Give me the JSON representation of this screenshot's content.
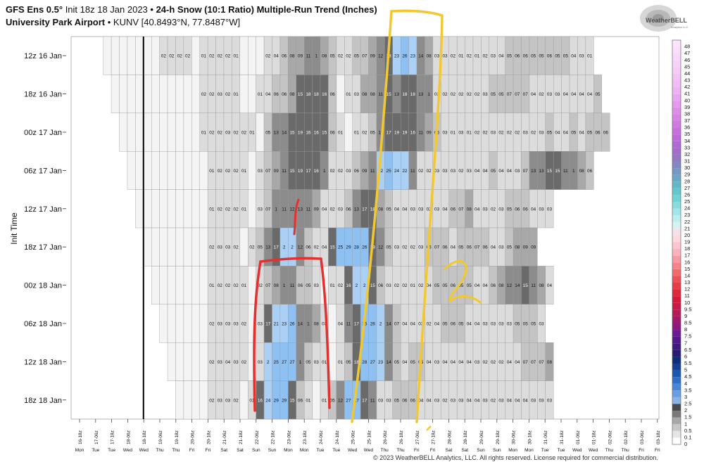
{
  "header": {
    "title_model": "GFS Ens 0.5°",
    "title_rest": "Init 18z 18 Jan 2023",
    "title_product": "24-h Snow (10:1 Ratio) Multiple-Run Trend (Inches)",
    "location_name": "University Park Airport",
    "location_rest": "KUNV [40.8493°N, 77.8487°W]",
    "logo_text": "WeatherBELL",
    "logo_sub": "Analytics LLC"
  },
  "footer": "© 2023 WeatherBELL Analytics, LLC. All rights reserved. License required for commercial distribution.",
  "colors": {
    "accent_blue": "#9ec6f2",
    "dark_gray": "#5a5a5a",
    "annotation_red": "#e53030",
    "annotation_yellow": "#f2c830"
  },
  "chart_data": {
    "type": "heatmap",
    "title": "24-h Snow (10:1 Ratio) Multiple-Run Trend (Inches)",
    "ylabel": "Init Time",
    "rows": [
      {
        "label": "12z 16 Jan",
        "start": 4,
        "values": [
          0,
          0,
          0,
          0,
          0,
          0,
          0,
          0.2,
          0.2,
          0.2,
          0.2,
          0,
          0.1,
          0.2,
          0.2,
          0.2,
          0.1,
          0,
          0,
          0,
          0.2,
          0.4,
          0.6,
          0.8,
          0.9,
          1.1,
          1.0,
          0.8,
          0.5,
          0.2,
          0.2,
          0.5,
          0.7,
          0.9,
          1.2,
          1.8,
          2.3,
          2.6,
          2.3,
          1.4,
          0.8,
          0.3,
          0.3,
          0.2,
          0.1,
          0.2,
          0.1,
          0.2,
          0.3,
          0.4,
          0.5,
          0.6,
          0.6,
          0.5,
          0.5,
          0.6,
          0.5,
          0.5,
          0.4,
          0.3,
          0.1
        ]
      },
      {
        "label": "18z 16 Jan",
        "start": 5,
        "values": [
          0,
          0,
          0,
          0,
          0,
          0,
          0,
          0,
          0,
          0,
          0,
          0.2,
          0.2,
          0.3,
          0.2,
          0.1,
          0,
          0,
          0.1,
          0.4,
          0.6,
          0.6,
          0.8,
          1.5,
          1.8,
          1.8,
          1.6,
          0.6,
          0,
          0.1,
          0.3,
          0.8,
          0.8,
          1.1,
          1.5,
          1.3,
          1.8,
          1.8,
          1.3,
          1.0,
          0.3,
          0.2,
          0.2,
          0.2,
          0.2,
          0.2,
          0.3,
          0.5,
          0.5,
          0.7,
          0.7,
          0.7,
          0.4,
          0.2,
          0.3,
          0.3,
          0.4,
          0.4,
          0.4,
          0.4,
          0.5
        ]
      },
      {
        "label": "00z 17 Jan",
        "start": 6,
        "values": [
          0,
          0,
          0,
          0,
          0,
          0,
          0,
          0,
          0,
          0,
          0.1,
          0.2,
          0.2,
          0.3,
          0.2,
          0.2,
          0.1,
          0,
          0.5,
          1.3,
          1.4,
          1.5,
          1.9,
          1.6,
          1.6,
          1.5,
          0.6,
          0.1,
          0,
          0.1,
          0.2,
          0.5,
          1.1,
          1.7,
          1.9,
          1.9,
          1.6,
          1.1,
          0.9,
          0.5,
          0.3,
          0.1,
          0.3,
          0.1,
          0.2,
          0.2,
          0.3,
          0.2,
          0.2,
          0.2,
          0.3,
          0.2,
          0.3,
          0.5,
          0.4,
          0.4,
          0.5,
          0.4,
          0.5,
          0.6,
          0.6
        ]
      },
      {
        "label": "06z 17 Jan",
        "start": 7,
        "values": [
          0,
          0,
          0,
          0,
          0,
          0,
          0,
          0,
          0,
          0,
          0.1,
          0.2,
          0.2,
          0.2,
          0.1,
          0,
          0.3,
          0.7,
          0.9,
          1.1,
          1.5,
          1.9,
          1.7,
          1.6,
          1.0,
          0.2,
          0.2,
          0.3,
          0.6,
          0.9,
          1.1,
          2.2,
          2.5,
          2.4,
          2.2,
          1.1,
          0.2,
          0.2,
          0.3,
          0.3,
          0.3,
          0.2,
          0.3,
          0.4,
          0.4,
          0.5,
          0.4,
          0.4,
          0.3,
          0.7,
          1.3,
          1.3,
          1.5,
          1.5,
          1.1,
          1.0,
          0.8,
          0.6
        ]
      },
      {
        "label": "12z 17 Jan",
        "start": 8,
        "values": [
          0,
          0,
          0,
          0,
          0,
          0,
          0,
          0,
          0,
          0.1,
          0.2,
          0.2,
          0.2,
          0.1,
          0,
          0.3,
          0.7,
          1.0,
          1.1,
          1.2,
          1.3,
          1.1,
          0.9,
          0.4,
          0.2,
          0.3,
          0.6,
          1.3,
          1.7,
          1.8,
          0.8,
          0.5,
          0.4,
          0.4,
          0.3,
          0.3,
          0.2,
          0.3,
          0.4,
          0.6,
          0.7,
          0.8,
          0.4,
          0.3,
          0.2,
          0.3,
          0.5,
          0.6,
          0.6,
          0.4,
          0.3,
          0.3
        ]
      },
      {
        "label": "18z 17 Jan",
        "start": 9,
        "values": [
          0,
          0,
          0,
          0,
          0,
          0,
          0,
          0,
          0.2,
          0.3,
          0.3,
          0.2,
          0,
          0.2,
          0.5,
          1.3,
          1.7,
          2.0,
          2.0,
          1.2,
          0.6,
          0.2,
          0.4,
          1.5,
          2.5,
          2.9,
          2.8,
          2.6,
          1.9,
          1.2,
          0.5,
          0.3,
          0.2,
          0.2,
          0.3,
          0.6,
          0.7,
          0.6,
          0.4,
          0.5,
          0.6,
          0.7,
          0.6,
          0.4,
          0.3,
          0.5,
          0.8,
          0.9,
          0.9
        ]
      },
      {
        "label": "00z 18 Jan",
        "start": 10,
        "values": [
          0,
          0,
          0,
          0,
          0,
          0,
          0,
          0.1,
          0.2,
          0.2,
          0.2,
          0.1,
          0,
          0.2,
          0.7,
          0.8,
          1.0,
          1.1,
          0.6,
          0.5,
          0.3,
          0,
          0.1,
          0.2,
          1.6,
          2.0,
          2.0,
          1.5,
          0.6,
          0.3,
          0.2,
          0.2,
          0.1,
          0.2,
          0.4,
          0.5,
          0.5,
          0.6,
          0.5,
          0.5,
          0.4,
          0.4,
          0.6,
          0.8,
          1.2,
          1.4,
          1.5,
          1.1,
          0.8,
          0.4
        ]
      },
      {
        "label": "06z 18 Jan",
        "start": 11,
        "values": [
          0,
          0,
          0,
          0,
          0,
          0,
          0.2,
          0.3,
          0.3,
          0.3,
          0.2,
          0,
          0.3,
          1.7,
          2.1,
          2.3,
          2.6,
          1.4,
          1.0,
          0.8,
          0.3,
          0,
          0.4,
          1.1,
          1.7,
          2.5,
          2.6,
          2.0,
          1.4,
          0.7,
          0.4,
          0.4,
          0.3,
          0.2,
          0.4,
          0.5,
          0.6,
          0.5,
          0.4,
          0.4,
          0.3,
          0.3,
          0.3,
          0.3,
          0.5,
          0.5,
          0.5,
          0.3
        ]
      },
      {
        "label": "12z 18 Jan",
        "start": 12,
        "values": [
          0,
          0,
          0,
          0,
          0,
          0.2,
          0.3,
          0.4,
          0.3,
          0.2,
          0,
          0.3,
          2.0,
          2.5,
          2.7,
          2.7,
          1.0,
          0.5,
          0.3,
          0.1,
          0,
          0.1,
          0.5,
          1.8,
          2.8,
          2.7,
          2.3,
          1.4,
          0.5,
          0.4,
          0.5,
          0.5,
          0.4,
          0.3,
          0.4,
          0.4,
          0.4,
          0.4,
          0.3,
          0.2,
          0.2,
          0.2,
          0.4,
          0.4,
          0.7,
          0.7,
          0.7,
          0.8
        ]
      },
      {
        "label": "18z 18 Jan",
        "start": 13,
        "values": [
          0,
          0,
          0,
          0,
          0.2,
          0.3,
          0.3,
          0.2,
          0,
          0.1,
          1.6,
          2.4,
          2.9,
          2.9,
          1.5,
          0.6,
          0.1,
          0,
          0.1,
          0.5,
          1.2,
          2.7,
          2.7,
          1.7,
          1.1,
          0.3,
          0.3,
          0.5,
          0.6,
          0.6,
          0.4,
          0.4,
          0.3,
          0.2,
          0.3,
          0.3,
          0.4,
          0.4,
          0.3,
          0.2,
          0.3,
          0.4,
          0.4,
          0.4,
          0.3,
          0.3,
          0.3
        ]
      }
    ],
    "x_ticks": [
      "16-18z",
      "17-06z",
      "17-18z",
      "18-06z",
      "18-18z",
      "19-06z",
      "19-18z",
      "20-06z",
      "20-18z",
      "21-06z",
      "21-18z",
      "22-06z",
      "22-18z",
      "23-06z",
      "23-18z",
      "24-06z",
      "24-18z",
      "25-06z",
      "25-18z",
      "26-06z",
      "26-18z",
      "27-06z",
      "27-18z",
      "28-06z",
      "28-18z",
      "29-06z",
      "29-18z",
      "30-06z",
      "30-18z",
      "31-06z",
      "31-18z",
      "01-06z",
      "01-18z",
      "02-06z",
      "02-18z",
      "03-06z",
      "03-18z"
    ],
    "day_labels": [
      "Mon",
      "Tue",
      "Tue",
      "Wed",
      "Wed",
      "Thu",
      "Thu",
      "Fri",
      "Fri",
      "Sat",
      "Sat",
      "Sun",
      "Sun",
      "Mon",
      "Mon",
      "Tue",
      "Tue",
      "Wed",
      "Wed",
      "Thu",
      "Thu",
      "Fri",
      "Fri",
      "Sat",
      "Sat",
      "Sun",
      "Sun",
      "Mon",
      "Mon",
      "Tue",
      "Tue",
      "Wed",
      "Wed",
      "Thu",
      "Thu",
      "Fri",
      "Fri"
    ],
    "colorbar_ticks": [
      "0",
      "0.1",
      "0.5",
      "1",
      "1.5",
      "2",
      "2.5",
      "3",
      "3.5",
      "4",
      "4.5",
      "5",
      "5.5",
      "6",
      "6.5",
      "7",
      "7.5",
      "8",
      "8.5",
      "9",
      "9.5",
      "10",
      "11",
      "12",
      "13",
      "14",
      "15",
      "16",
      "17",
      "18",
      "19",
      "20",
      "21",
      "22",
      "23",
      "24",
      "25",
      "26",
      "27",
      "28",
      "29",
      "30",
      "31",
      "32",
      "33",
      "34",
      "35",
      "36",
      "37",
      "38",
      "39",
      "40",
      "41",
      "42",
      "43",
      "44",
      "45",
      "46",
      "47",
      "48"
    ],
    "colorbar_colors": [
      "#ffffff",
      "#e6e6e6",
      "#c8c8c8",
      "#a8a8a8",
      "#7a7a7a",
      "#4a4a4a",
      "#8ab4e8",
      "#6a9ee0",
      "#4a86d6",
      "#2e6ec8",
      "#1d56b0",
      "#143f94",
      "#0e2e7a",
      "#2a1a70",
      "#3d1a80",
      "#521a8c",
      "#6a1a94",
      "#8a1a80",
      "#a01a6a",
      "#b81a54",
      "#c81a44",
      "#d41a3a",
      "#dc2a3a",
      "#e43e48",
      "#ec5258",
      "#f26a6e",
      "#f6828a",
      "#f89aa4",
      "#fab2bc",
      "#fcc6d0",
      "#fcd8e0",
      "#f8e0e8",
      "#d8f2f4",
      "#bceef0",
      "#a0e6ea",
      "#88dcdc",
      "#74d2d4",
      "#66c6cc",
      "#62b8c8",
      "#6aa8c6",
      "#7698c4",
      "#8488c2",
      "#9478c4",
      "#a46ccc",
      "#b068d4",
      "#bc6ad8",
      "#c670dc",
      "#d07ae0",
      "#d884e4",
      "#de8ee8",
      "#e49aec",
      "#e8a6f0",
      "#ecb2f2",
      "#f0bcf4",
      "#f2c4f6",
      "#f4ccf6",
      "#f6d2f8",
      "#f8d8fa",
      "#fadefc",
      "#fce4fc"
    ],
    "vertical_line_index": 3
  }
}
